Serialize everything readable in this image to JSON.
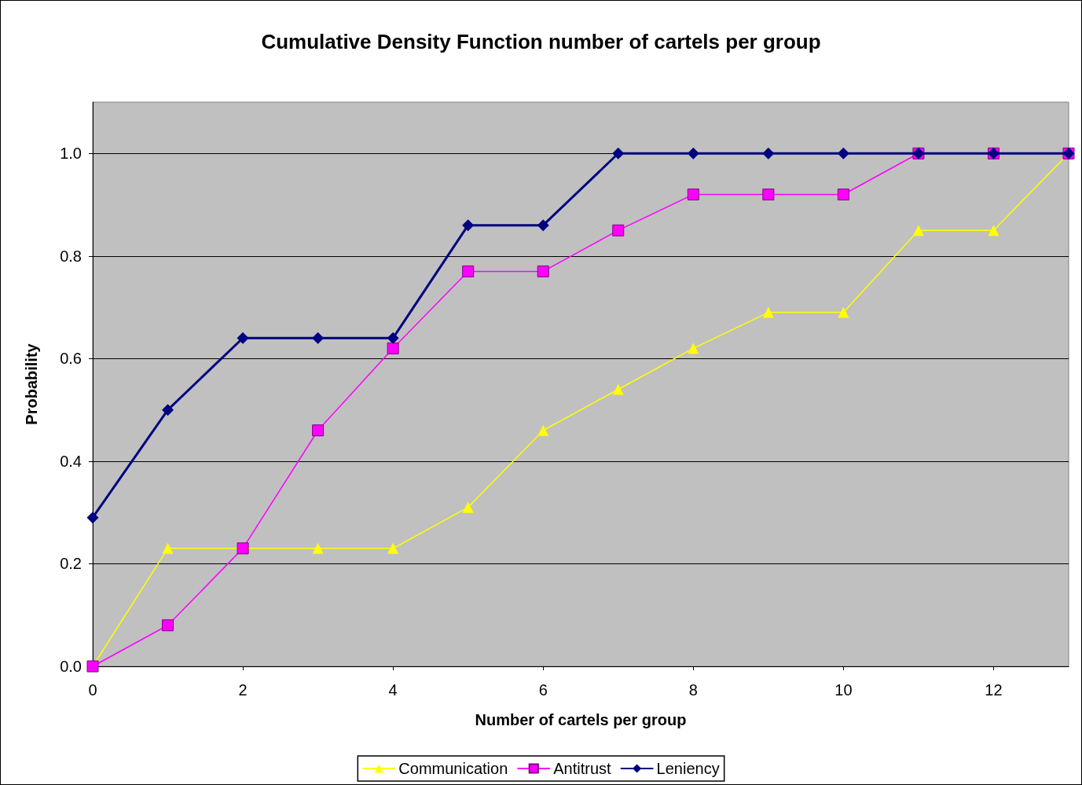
{
  "chart_data": {
    "type": "line",
    "title": "Cumulative Density Function number of cartels per group",
    "xlabel": "Number of cartels per group",
    "ylabel": "Probability",
    "x": [
      0,
      1,
      2,
      3,
      4,
      5,
      6,
      7,
      8,
      9,
      10,
      11,
      12,
      13
    ],
    "series": [
      {
        "name": "Communication",
        "color": "#ffff00",
        "marker": "triangle",
        "values": [
          0,
          0.23,
          0.23,
          0.23,
          0.23,
          0.31,
          0.46,
          0.54,
          0.62,
          0.69,
          0.69,
          0.85,
          0.85,
          1.0
        ]
      },
      {
        "name": "Antitrust",
        "color": "#ff00ff",
        "marker": "square",
        "values": [
          0,
          0.08,
          0.23,
          0.46,
          0.62,
          0.77,
          0.77,
          0.85,
          0.92,
          0.92,
          0.92,
          1.0,
          1.0,
          1.0
        ]
      },
      {
        "name": "Leniency",
        "color": "#000080",
        "marker": "diamond",
        "values": [
          0.29,
          0.5,
          0.64,
          0.64,
          0.64,
          0.86,
          0.86,
          1.0,
          1.0,
          1.0,
          1.0,
          1.0,
          1.0,
          1.0
        ]
      }
    ],
    "xlim": [
      0,
      13
    ],
    "xticks": [
      0,
      2,
      4,
      6,
      8,
      10,
      12
    ],
    "ylim": [
      0,
      1.1
    ],
    "yticks": [
      {
        "value": 0,
        "label": "0.0"
      },
      0.2,
      0.4,
      0.6,
      0.8,
      {
        "value": 1,
        "label": "1.0"
      }
    ],
    "grid": "y",
    "legend": "bottom"
  }
}
